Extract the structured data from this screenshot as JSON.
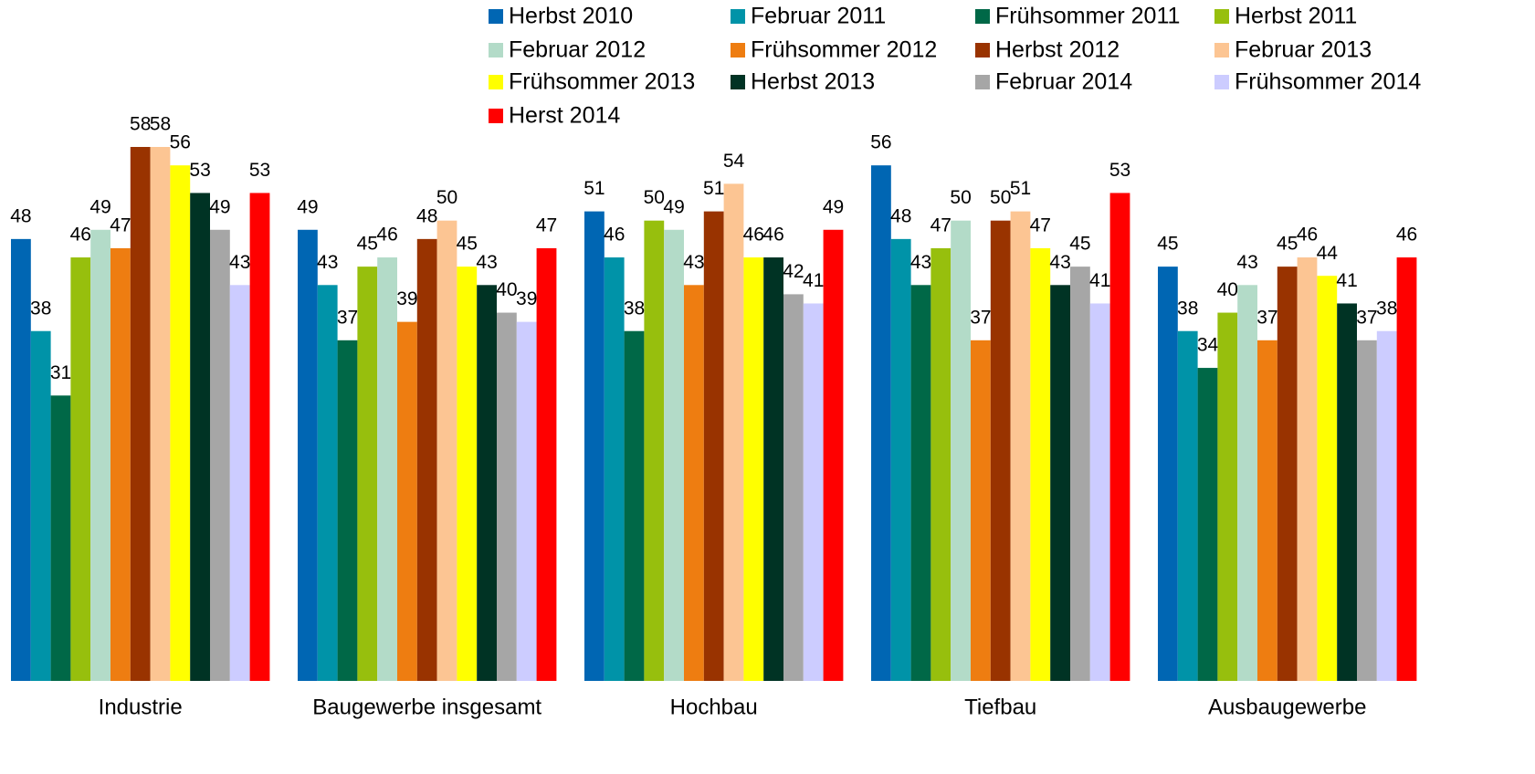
{
  "chart_data": {
    "type": "bar",
    "categories": [
      "Industrie",
      "Baugewerbe insgesamt",
      "Hochbau",
      "Tiefbau",
      "Ausbaugewerbe"
    ],
    "series": [
      {
        "name": "Herbst 2010",
        "color": "#0066b3",
        "values": [
          48,
          49,
          51,
          56,
          45
        ]
      },
      {
        "name": "Februar 2011",
        "color": "#0093a8",
        "values": [
          38,
          43,
          46,
          48,
          38
        ]
      },
      {
        "name": "Frühsommer 2011",
        "color": "#006847",
        "values": [
          31,
          37,
          38,
          43,
          34
        ]
      },
      {
        "name": "Herbst 2011",
        "color": "#97bf0d",
        "values": [
          46,
          45,
          50,
          47,
          40
        ]
      },
      {
        "name": "Februar 2012",
        "color": "#b3dbc8",
        "values": [
          49,
          46,
          49,
          50,
          43
        ]
      },
      {
        "name": "Frühsommer 2012",
        "color": "#ee7d11",
        "values": [
          47,
          39,
          43,
          37,
          37
        ]
      },
      {
        "name": "Herbst 2012",
        "color": "#993300",
        "values": [
          58,
          48,
          51,
          50,
          45
        ]
      },
      {
        "name": "Februar 2013",
        "color": "#fcc593",
        "values": [
          58,
          50,
          54,
          51,
          46
        ]
      },
      {
        "name": "Frühsommer 2013",
        "color": "#ffff00",
        "values": [
          56,
          45,
          46,
          47,
          44
        ]
      },
      {
        "name": "Herbst 2013",
        "color": "#003324",
        "values": [
          53,
          43,
          46,
          43,
          41
        ]
      },
      {
        "name": "Februar 2014",
        "color": "#a6a6a6",
        "values": [
          49,
          40,
          42,
          45,
          37
        ]
      },
      {
        "name": "Frühsommer 2014",
        "color": "#ccccff",
        "values": [
          43,
          39,
          41,
          41,
          38
        ]
      },
      {
        "name": "Herst 2014",
        "color": "#ff0000",
        "values": [
          53,
          47,
          49,
          53,
          46
        ]
      }
    ]
  }
}
